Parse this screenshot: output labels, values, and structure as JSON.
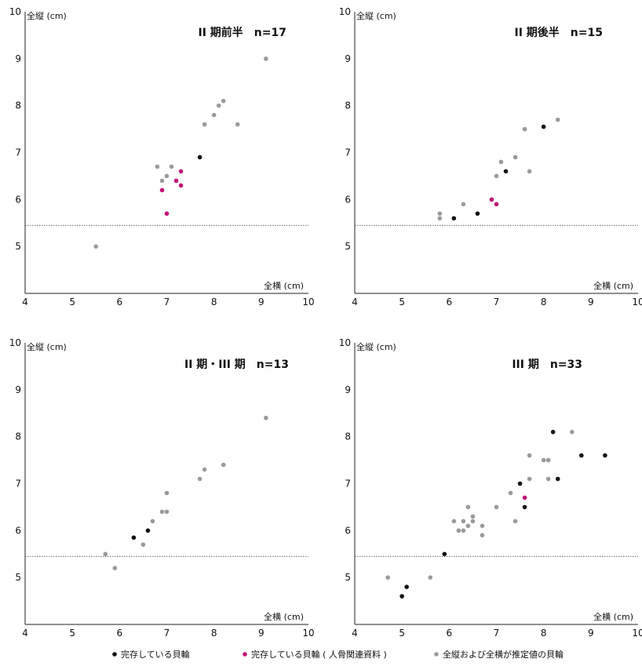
{
  "colors": {
    "complete": "#111111",
    "bone": "#c2127a",
    "estimated": "#9a9a9a"
  },
  "legend": {
    "items": [
      {
        "key": "complete",
        "label": "完存している貝輪"
      },
      {
        "key": "bone",
        "label": "完存している貝輪 ( 人骨関連資料 )"
      },
      {
        "key": "estimated",
        "label": "全縦および全横が推定値の貝輪"
      }
    ]
  },
  "chart_data": [
    {
      "type": "scatter",
      "title": "II 期前半　n=17",
      "xlabel": "全横 (cm)",
      "ylabel": "全縦 (cm)",
      "xlim": [
        4,
        10
      ],
      "ylim": [
        4,
        10
      ],
      "xticks": [
        "4",
        "5",
        "6",
        "7",
        "8",
        "9",
        "10"
      ],
      "yticks": [
        "5",
        "6",
        "7",
        "8",
        "9",
        "10"
      ],
      "reference_y": 5.45,
      "series": [
        {
          "key": "complete",
          "points": [
            [
              7.7,
              6.9
            ]
          ]
        },
        {
          "key": "bone",
          "points": [
            [
              7.3,
              6.6
            ],
            [
              7.2,
              6.4
            ],
            [
              7.3,
              6.3
            ],
            [
              6.9,
              6.2
            ],
            [
              7.0,
              5.7
            ]
          ]
        },
        {
          "key": "estimated",
          "points": [
            [
              9.1,
              9.0
            ],
            [
              8.2,
              8.1
            ],
            [
              8.1,
              8.0
            ],
            [
              8.0,
              7.8
            ],
            [
              7.8,
              7.6
            ],
            [
              8.5,
              7.6
            ],
            [
              6.8,
              6.7
            ],
            [
              7.1,
              6.7
            ],
            [
              7.0,
              6.5
            ],
            [
              6.9,
              6.4
            ],
            [
              5.5,
              5.0
            ]
          ]
        }
      ]
    },
    {
      "type": "scatter",
      "title": "II 期後半　n=15",
      "xlabel": "全横 (cm)",
      "ylabel": "全縦 (cm)",
      "xlim": [
        4,
        10
      ],
      "ylim": [
        4,
        10
      ],
      "xticks": [
        "4",
        "5",
        "6",
        "7",
        "8",
        "9",
        "10"
      ],
      "yticks": [
        "5",
        "6",
        "7",
        "8",
        "9",
        "10"
      ],
      "reference_y": 5.45,
      "series": [
        {
          "key": "complete",
          "points": [
            [
              8.0,
              7.55
            ],
            [
              7.2,
              6.6
            ],
            [
              6.6,
              5.7
            ],
            [
              6.1,
              5.6
            ]
          ]
        },
        {
          "key": "bone",
          "points": [
            [
              6.9,
              6.0
            ],
            [
              7.0,
              5.9
            ]
          ]
        },
        {
          "key": "estimated",
          "points": [
            [
              8.3,
              7.7
            ],
            [
              7.6,
              7.5
            ],
            [
              7.4,
              6.9
            ],
            [
              7.1,
              6.8
            ],
            [
              7.7,
              6.6
            ],
            [
              7.0,
              6.5
            ],
            [
              6.3,
              5.9
            ],
            [
              5.8,
              5.7
            ],
            [
              5.8,
              5.6
            ]
          ]
        }
      ]
    },
    {
      "type": "scatter",
      "title": "II 期・III 期　n=13",
      "xlabel": "全横 (cm)",
      "ylabel": "全縦 (cm)",
      "xlim": [
        4,
        10
      ],
      "ylim": [
        4,
        10
      ],
      "xticks": [
        "4",
        "5",
        "6",
        "7",
        "8",
        "9",
        "10"
      ],
      "yticks": [
        "5",
        "6",
        "7",
        "8",
        "9",
        "10"
      ],
      "reference_y": 5.45,
      "series": [
        {
          "key": "complete",
          "points": [
            [
              6.6,
              6.0
            ],
            [
              6.3,
              5.85
            ]
          ]
        },
        {
          "key": "bone",
          "points": []
        },
        {
          "key": "estimated",
          "points": [
            [
              9.1,
              8.4
            ],
            [
              8.2,
              7.4
            ],
            [
              7.8,
              7.3
            ],
            [
              7.7,
              7.1
            ],
            [
              7.0,
              6.8
            ],
            [
              6.9,
              6.4
            ],
            [
              7.0,
              6.4
            ],
            [
              6.7,
              6.2
            ],
            [
              6.5,
              5.7
            ],
            [
              5.7,
              5.5
            ],
            [
              5.9,
              5.2
            ]
          ]
        }
      ]
    },
    {
      "type": "scatter",
      "title": "III 期　n=33",
      "xlabel": "全横 (cm)",
      "ylabel": "全縦 (cm)",
      "xlim": [
        4,
        10
      ],
      "ylim": [
        4,
        10
      ],
      "xticks": [
        "4",
        "5",
        "6",
        "7",
        "8",
        "9",
        "10"
      ],
      "yticks": [
        "5",
        "6",
        "7",
        "8",
        "9",
        "10"
      ],
      "reference_y": 5.45,
      "series": [
        {
          "key": "complete",
          "points": [
            [
              8.2,
              8.1
            ],
            [
              8.8,
              7.6
            ],
            [
              9.3,
              7.6
            ],
            [
              8.3,
              7.1
            ],
            [
              7.5,
              7.0
            ],
            [
              7.6,
              6.5
            ],
            [
              5.9,
              5.5
            ],
            [
              5.1,
              4.8
            ],
            [
              5.0,
              4.6
            ]
          ]
        },
        {
          "key": "bone",
          "points": [
            [
              7.6,
              6.7
            ]
          ]
        },
        {
          "key": "estimated",
          "points": [
            [
              8.6,
              8.1
            ],
            [
              7.7,
              7.6
            ],
            [
              8.0,
              7.5
            ],
            [
              8.1,
              7.5
            ],
            [
              7.7,
              7.1
            ],
            [
              8.1,
              7.1
            ],
            [
              7.3,
              6.8
            ],
            [
              7.0,
              6.5
            ],
            [
              6.4,
              6.5
            ],
            [
              6.5,
              6.3
            ],
            [
              6.1,
              6.2
            ],
            [
              6.3,
              6.2
            ],
            [
              6.5,
              6.2
            ],
            [
              6.4,
              6.1
            ],
            [
              6.7,
              6.1
            ],
            [
              6.2,
              6.0
            ],
            [
              6.3,
              6.0
            ],
            [
              6.7,
              5.9
            ],
            [
              7.4,
              6.2
            ],
            [
              5.6,
              5.0
            ],
            [
              4.7,
              5.0
            ]
          ]
        }
      ]
    }
  ]
}
